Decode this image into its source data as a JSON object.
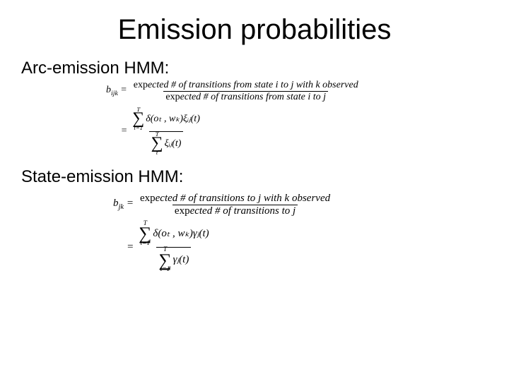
{
  "title": "Emission probabilities",
  "arc": {
    "heading": "Arc-emission HMM:",
    "lhs_var": "b",
    "lhs_sub": "ijk",
    "eq": "=",
    "frac1_num_pre": "exp",
    "frac1_num_rest": "ected # of transitions from state i to j with k observed",
    "frac1_den_pre": "exp",
    "frac1_den_rest": "ected # of transitions from state i to j",
    "sigma_top": "T",
    "sigma_bot_num": "t=1",
    "sigma_bot_den": "t",
    "num_expr": "δ(oₜ , wₖ)ξᵢⱼ(t)",
    "den_expr": "ξᵢⱼ(t)",
    "den_top": "T"
  },
  "state": {
    "heading": "State-emission HMM:",
    "lhs_var": "b",
    "lhs_sub": "jk",
    "eq": "=",
    "frac1_num_pre": "exp",
    "frac1_num_rest": "ected # of transitions to j with k observed",
    "frac1_den_pre": "exp",
    "frac1_den_rest": "ected # of transitions to j",
    "sigma_top": "T",
    "sigma_bot_num": "t=1",
    "sigma_bot_den": "t=1",
    "num_expr": "δ(oₜ , wₖ)γⱼ(t)",
    "den_expr": "γⱼ(t)",
    "den_top": "T"
  },
  "colors": {
    "text": "#000000",
    "bg": "#ffffff"
  }
}
